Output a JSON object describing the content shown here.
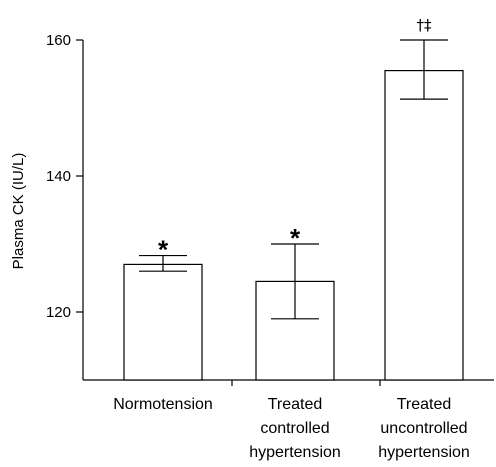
{
  "chart_data": {
    "type": "bar",
    "title": "",
    "xlabel": "",
    "ylabel": "Plasma CK (IU/L)",
    "ylim": [
      110,
      160
    ],
    "yticks": [
      120,
      140,
      160
    ],
    "grid": false,
    "categories": [
      [
        "Normotension"
      ],
      [
        "Treated",
        "controlled",
        "hypertension"
      ],
      [
        "Treated",
        "uncontrolled",
        "hypertension"
      ]
    ],
    "values": [
      127,
      124.5,
      155.5
    ],
    "error_low": [
      126,
      119,
      151.3
    ],
    "error_high": [
      128.3,
      130,
      160
    ],
    "annotations": [
      "*",
      "*",
      "†‡"
    ],
    "colors": {
      "bar_fill": "#ffffff",
      "stroke": "#000000"
    }
  }
}
